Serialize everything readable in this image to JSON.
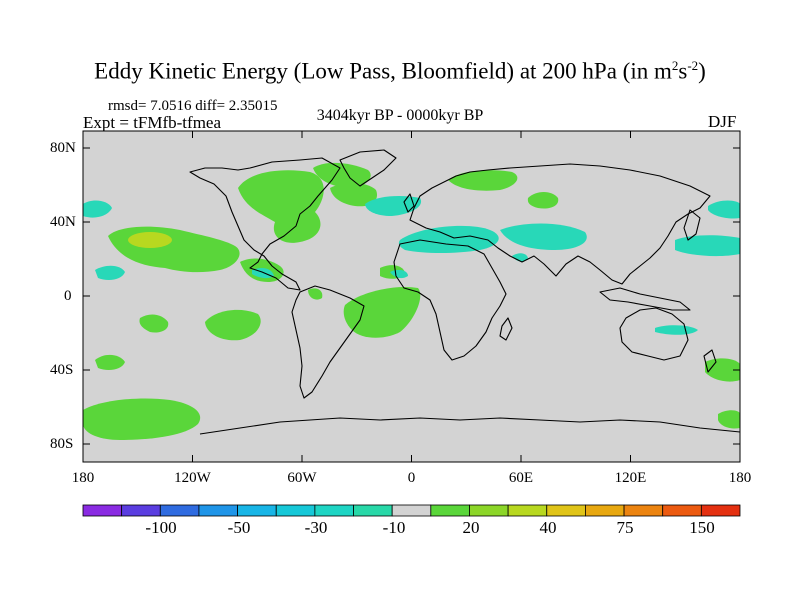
{
  "title": "Eddy Kinetic Energy (Low Pass, Bloomfield) at 200 hPa (in m",
  "title_sup1": "2",
  "title_mid": "s",
  "title_sup2": "-2",
  "title_end": ")",
  "stats": "rmsd= 7.0516 diff= 2.35015",
  "experiment": "Expt = tFMfb-tfmea",
  "period": "3404kyr BP - 0000kyr BP",
  "season": "DJF",
  "lat_labels": [
    "80N",
    "40N",
    "0",
    "40S",
    "80S"
  ],
  "lon_labels": [
    "180",
    "120W",
    "60W",
    "0",
    "60E",
    "120E",
    "180"
  ],
  "colorbar": {
    "colors": [
      "#8a2be2",
      "#5a3de0",
      "#2f6be0",
      "#1f95e8",
      "#18b5e6",
      "#16c8d8",
      "#1ed5c4",
      "#28d8a8",
      "#d3d3d3",
      "#5ad63a",
      "#8cd628",
      "#b8d820",
      "#e0c418",
      "#e8a810",
      "#ec8410",
      "#ec5a10",
      "#e43010"
    ],
    "labels": [
      "-100",
      "-50",
      "-30",
      "-10",
      "20",
      "40",
      "75",
      "150"
    ]
  },
  "legend_colors": {
    "background": "#d3d3d3",
    "positive_low": "#5ad63a",
    "positive_mid": "#b8d820",
    "negative_low": "#28d8b8"
  }
}
